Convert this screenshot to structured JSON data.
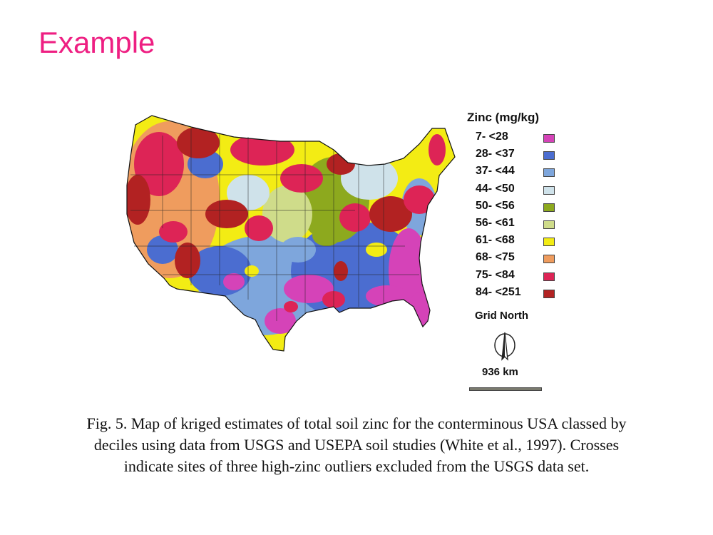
{
  "slide": {
    "title": "Example"
  },
  "map": {
    "legend_title": "Zinc (mg/kg)",
    "classes": [
      {
        "label": "7- <28",
        "color": "#d543b8"
      },
      {
        "label": "28- <37",
        "color": "#4b6dd0"
      },
      {
        "label": "37- <44",
        "color": "#7ea6dc"
      },
      {
        "label": "44- <50",
        "color": "#cfe2ea"
      },
      {
        "label": "50- <56",
        "color": "#8da91e"
      },
      {
        "label": "56- <61",
        "color": "#cfdc8a"
      },
      {
        "label": "61- <68",
        "color": "#f3ec14"
      },
      {
        "label": "68- <75",
        "color": "#ef9c5e"
      },
      {
        "label": "75- <84",
        "color": "#dd2456"
      },
      {
        "label": "84- <251",
        "color": "#b22222"
      }
    ],
    "grid_north_label": "Grid North",
    "scale_label": "936 km"
  },
  "caption": {
    "line1": "Fig. 5. Map of kriged estimates of total soil zinc for the conterminous USA classed by",
    "line2": "deciles using data from USGS and USEPA soil studies (White et al., 1997). Crosses",
    "line3": "indicate sites of three high-zinc outliers excluded from the USGS data set."
  }
}
